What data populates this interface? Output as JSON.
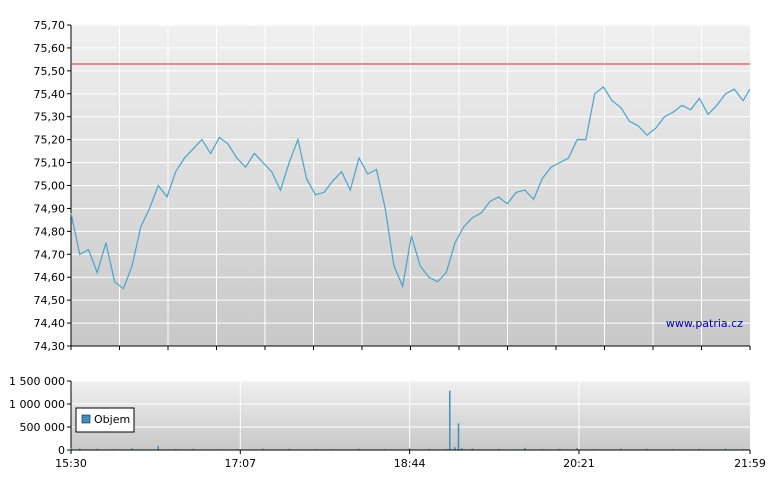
{
  "chart_data": [
    {
      "type": "line",
      "panel": "price",
      "watermark": "www.patria.cz",
      "y_ticks": [
        "74,30",
        "74,40",
        "74,50",
        "74,60",
        "74,70",
        "74,80",
        "74,90",
        "75,00",
        "75,10",
        "75,20",
        "75,30",
        "75,40",
        "75,50",
        "75,60",
        "75,70"
      ],
      "ylim": [
        74.3,
        75.7
      ],
      "xlim": [
        "15:30",
        "21:59"
      ],
      "reference_line": {
        "value": 75.53,
        "color": "#cc3333"
      },
      "grid": true,
      "colors": {
        "line": "#4aa3cc",
        "background_top": "#f0f0f0",
        "background_bottom": "#c8c8c8"
      },
      "series": [
        {
          "x": [
            "15:30",
            "15:35",
            "15:40",
            "15:45",
            "15:50",
            "15:55",
            "16:00",
            "16:05",
            "16:10",
            "16:15",
            "16:20",
            "16:25",
            "16:30",
            "16:35",
            "16:40",
            "16:45",
            "16:50",
            "16:55",
            "17:00",
            "17:05",
            "17:10",
            "17:15",
            "17:20",
            "17:25",
            "17:30",
            "17:35",
            "17:40",
            "17:45",
            "17:50",
            "17:55",
            "18:00",
            "18:05",
            "18:10",
            "18:15",
            "18:20",
            "18:25",
            "18:30",
            "18:35",
            "18:40",
            "18:45",
            "18:50",
            "18:55",
            "19:00",
            "19:05",
            "19:10",
            "19:15",
            "19:20",
            "19:25",
            "19:30",
            "19:35",
            "19:40",
            "19:45",
            "19:50",
            "19:55",
            "20:00",
            "20:05",
            "20:10",
            "20:15",
            "20:20",
            "20:25",
            "20:30",
            "20:35",
            "20:40",
            "20:45",
            "20:50",
            "20:55",
            "21:00",
            "21:05",
            "21:10",
            "21:15",
            "21:20",
            "21:25",
            "21:30",
            "21:35",
            "21:40",
            "21:45",
            "21:50",
            "21:55",
            "21:59"
          ],
          "values": [
            74.88,
            74.7,
            74.72,
            74.62,
            74.75,
            74.58,
            74.55,
            74.65,
            74.82,
            74.9,
            75.0,
            74.95,
            75.06,
            75.12,
            75.16,
            75.2,
            75.14,
            75.21,
            75.18,
            75.12,
            75.08,
            75.14,
            75.1,
            75.06,
            74.98,
            75.1,
            75.2,
            75.03,
            74.96,
            74.97,
            75.02,
            75.06,
            74.98,
            75.12,
            75.05,
            75.07,
            74.9,
            74.65,
            74.56,
            74.78,
            74.65,
            74.6,
            74.58,
            74.62,
            74.75,
            74.82,
            74.86,
            74.88,
            74.93,
            74.95,
            74.92,
            74.97,
            74.98,
            74.94,
            75.03,
            75.08,
            75.1,
            75.12,
            75.2,
            75.2,
            75.4,
            75.43,
            75.37,
            75.34,
            75.28,
            75.26,
            75.22,
            75.25,
            75.3,
            75.32,
            75.35,
            75.33,
            75.38,
            75.31,
            75.35,
            75.4,
            75.42,
            75.37,
            75.42
          ]
        }
      ]
    },
    {
      "type": "bar",
      "panel": "volume",
      "y_ticks": [
        "0",
        "500 000",
        "1 000 000",
        "1 500 000"
      ],
      "ylim": [
        0,
        1500000
      ],
      "x_ticks": [
        "15:30",
        "17:07",
        "18:44",
        "20:21",
        "21:59"
      ],
      "legend": {
        "label": "Objem",
        "color": "#3f8fc0",
        "placement": "left"
      },
      "grid": true,
      "colors": {
        "bar": "#3f8fc0",
        "background_top": "#f0f0f0",
        "background_bottom": "#c8c8c8"
      },
      "series": [
        {
          "name": "Objem",
          "x": [
            "15:30",
            "15:35",
            "15:45",
            "15:55",
            "16:05",
            "16:20",
            "16:30",
            "16:40",
            "16:55",
            "17:05",
            "17:20",
            "17:35",
            "17:50",
            "18:00",
            "18:15",
            "18:30",
            "18:44",
            "18:55",
            "19:05",
            "19:07",
            "19:10",
            "19:12",
            "19:14",
            "19:20",
            "19:35",
            "19:50",
            "20:00",
            "20:10",
            "20:20",
            "20:30",
            "20:45",
            "21:00",
            "21:15",
            "21:30",
            "21:45",
            "21:55"
          ],
          "values": [
            40000,
            30000,
            25000,
            20000,
            35000,
            90000,
            20000,
            25000,
            15000,
            20000,
            30000,
            25000,
            20000,
            15000,
            25000,
            20000,
            35000,
            25000,
            20000,
            1290000,
            60000,
            580000,
            40000,
            30000,
            25000,
            50000,
            20000,
            25000,
            45000,
            20000,
            30000,
            25000,
            20000,
            25000,
            30000,
            20000
          ]
        }
      ]
    }
  ]
}
